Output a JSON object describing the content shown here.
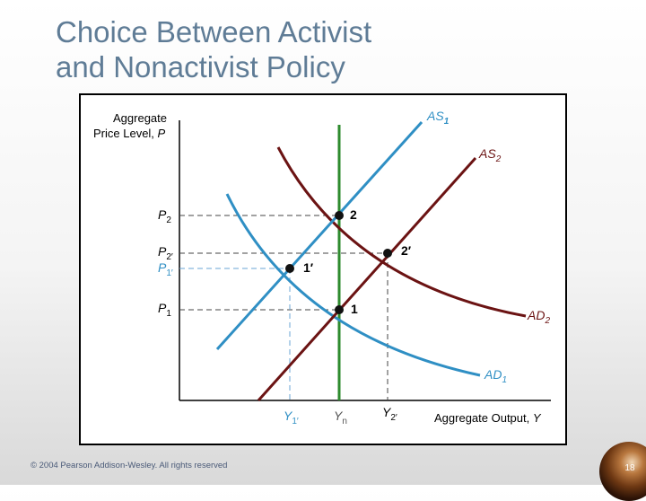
{
  "slide": {
    "title_line1": "Choice Between Activist",
    "title_line2": "and Nonactivist Policy",
    "copyright": "© 2004 Pearson Addison-Wesley. All rights reserved",
    "page_number": "18"
  },
  "diagram": {
    "y_axis_label_line1": "Aggregate",
    "y_axis_label_line2_prefix": "Price Level, ",
    "y_axis_label_line2_var": "P",
    "x_axis_label_prefix": "Aggregate Output, ",
    "x_axis_label_var": "Y",
    "curves": {
      "as1": {
        "letters": "AS",
        "sub": "1"
      },
      "as2": {
        "letters": "AS",
        "sub": "2"
      },
      "ad1": {
        "letters": "AD",
        "sub": "1"
      },
      "ad2": {
        "letters": "AD",
        "sub": "2"
      }
    },
    "price_ticks": {
      "p2": {
        "letter": "P",
        "sub": "2"
      },
      "p2prime": {
        "letter": "P",
        "sub": "2′"
      },
      "p1prime": {
        "letter": "P",
        "sub": "1′"
      },
      "p1": {
        "letter": "P",
        "sub": "1"
      }
    },
    "output_ticks": {
      "y1prime": {
        "letter": "Y",
        "sub": "1′"
      },
      "yn": {
        "letter": "Y",
        "sub": "n"
      },
      "y2prime": {
        "letter": "Y",
        "sub": "2′"
      }
    },
    "points": {
      "pt2": "2",
      "pt2prime": "2′",
      "pt1prime": "1′",
      "pt1": "1"
    },
    "colors": {
      "blue": "#2f8fc4",
      "dark_red": "#6b1313",
      "green": "#2e8b2e",
      "dashed": "#444444",
      "dashed_blue": "#6aa6d4"
    }
  }
}
